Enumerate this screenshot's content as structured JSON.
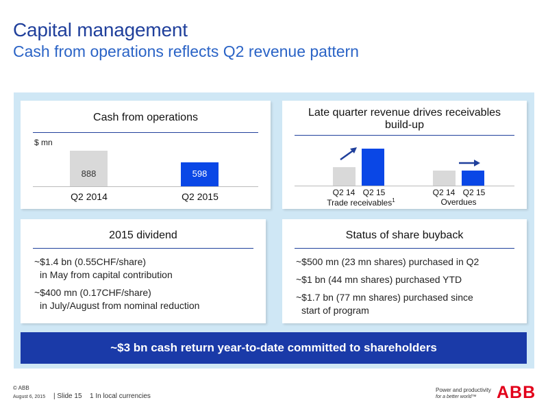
{
  "title": "Capital management",
  "subtitle": "Cash from operations reflects Q2 revenue pattern",
  "cash_card": {
    "heading": "Cash from operations",
    "unit": "$ mn",
    "bars": [
      {
        "label": "Q2 2014",
        "value": "888",
        "amount": 888,
        "color": "#d9d9d9"
      },
      {
        "label": "Q2 2015",
        "value": "598",
        "amount": 598,
        "color": "#0a47e6"
      }
    ]
  },
  "receivables_card": {
    "heading": "Late quarter revenue drives receivables build-up",
    "groups": [
      {
        "name": "Trade receivables",
        "footnote_mark": "1",
        "bars": [
          {
            "label": "Q2 14",
            "amount": 2
          },
          {
            "label": "Q2 15",
            "amount": 3.5
          }
        ],
        "trend": "up"
      },
      {
        "name": "Overdues",
        "footnote_mark": "",
        "bars": [
          {
            "label": "Q2 14",
            "amount": 1.4
          },
          {
            "label": "Q2 15",
            "amount": 1.4
          }
        ],
        "trend": "flat"
      }
    ]
  },
  "dividend_card": {
    "heading": "2015 dividend",
    "items": [
      {
        "line1": "~$1.4 bn (0.55CHF/share)",
        "line2": "in May from capital contribution"
      },
      {
        "line1": "~$400 mn (0.17CHF/share)",
        "line2": "in July/August from nominal reduction"
      }
    ]
  },
  "buyback_card": {
    "heading": "Status of share buyback",
    "items": [
      {
        "line1": "~$500 mn (23 mn shares) purchased in Q2",
        "line2": ""
      },
      {
        "line1": "~$1 bn (44 mn shares) purchased YTD",
        "line2": ""
      },
      {
        "line1": "~$1.7 bn (77 mn shares) purchased since",
        "line2": "start of program"
      }
    ]
  },
  "banner": "~$3 bn cash return year-to-date committed to shareholders",
  "footer": {
    "copyright": "© ABB",
    "date": "August 6, 2015",
    "slide": "| Slide 15",
    "footnote": "1 In local currencies",
    "tagline1": "Power and productivity",
    "tagline2": "for a better world™",
    "logo": "ABB"
  },
  "colors": {
    "title": "#1f3f9b",
    "accent": "#0a47e6",
    "banner": "#1a3aa8",
    "panel": "#cfe7f5",
    "logo": "#e2001a"
  }
}
